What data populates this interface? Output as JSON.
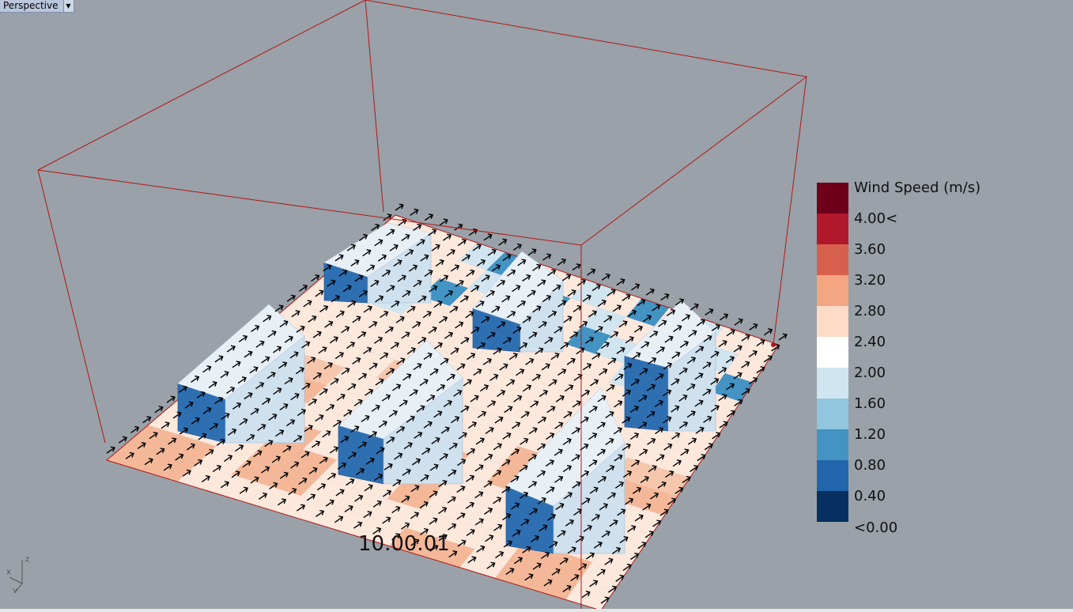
{
  "viewport": {
    "name": "Perspective",
    "background": "#9aa1a8"
  },
  "legend": {
    "title": "Wind Speed (m/s)",
    "labels": [
      "4.00<",
      "3.60",
      "3.20",
      "2.80",
      "2.40",
      "2.00",
      "1.60",
      "1.20",
      "0.80",
      "0.40",
      "<0.00"
    ],
    "colors": [
      "#6e0019",
      "#b2182b",
      "#d6604d",
      "#f4a582",
      "#fddbc7",
      "#ffffff",
      "#d1e5f0",
      "#92c5de",
      "#4393c3",
      "#2166ac",
      "#053061"
    ]
  },
  "timestamp": "10.00.01",
  "axis": {
    "x": "x",
    "y": "y",
    "z": "z"
  },
  "colors": {
    "bounding_box": "#b01818",
    "arrows": "#000000",
    "ground_warm": "#f4b899",
    "ground_light": "#fde8dc",
    "building_light": "#e8f0f6",
    "building_dark": "#2e6fb2"
  }
}
